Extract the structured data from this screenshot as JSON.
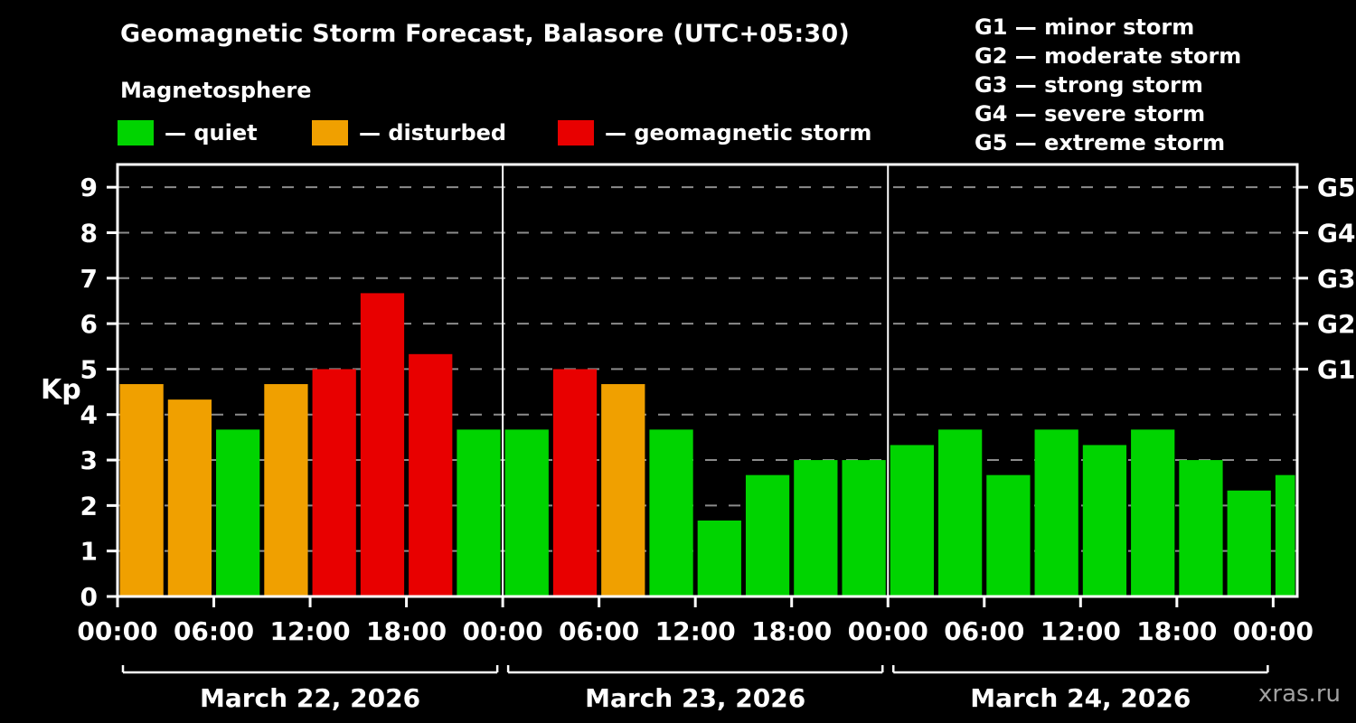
{
  "header": {
    "title": "Geomagnetic Storm Forecast, Balasore (UTC+05:30)",
    "subtitle": "Magnetosphere"
  },
  "legend": {
    "items": [
      {
        "name": "quiet",
        "label": "— quiet"
      },
      {
        "name": "disturbed",
        "label": "— disturbed"
      },
      {
        "name": "storm",
        "label": "— geomagnetic storm"
      }
    ]
  },
  "g_scale": {
    "items": [
      "G1 — minor storm",
      "G2 — moderate storm",
      "G3 — strong storm",
      "G4 — severe storm",
      "G5 — extreme storm"
    ]
  },
  "colors": {
    "quiet": "#00D400",
    "disturbed": "#F0A000",
    "storm": "#E80000",
    "background": "#000000",
    "axis": "#FFFFFF",
    "grid": "#8C8C8C",
    "watermark": "#A0A0A0"
  },
  "footer": {
    "watermark": "xras.ru"
  },
  "chart_data": {
    "type": "bar",
    "title": "Geomagnetic Storm Forecast, Balasore (UTC+05:30)",
    "xlabel": "",
    "ylabel": "Kp",
    "ylim": [
      0,
      9.5
    ],
    "grid": "dashed",
    "legend_position": "top",
    "y_ticks": [
      0,
      1,
      2,
      3,
      4,
      5,
      6,
      7,
      8,
      9
    ],
    "right_ticks": [
      {
        "kp": 5,
        "label": "G1"
      },
      {
        "kp": 6,
        "label": "G2"
      },
      {
        "kp": 7,
        "label": "G3"
      },
      {
        "kp": 8,
        "label": "G4"
      },
      {
        "kp": 9,
        "label": "G5"
      }
    ],
    "x_ticks": [
      {
        "hour": 0,
        "label": "00:00"
      },
      {
        "hour": 6,
        "label": "06:00"
      },
      {
        "hour": 12,
        "label": "12:00"
      },
      {
        "hour": 18,
        "label": "18:00"
      },
      {
        "hour": 24,
        "label": "00:00"
      },
      {
        "hour": 30,
        "label": "06:00"
      },
      {
        "hour": 36,
        "label": "12:00"
      },
      {
        "hour": 42,
        "label": "18:00"
      },
      {
        "hour": 48,
        "label": "00:00"
      },
      {
        "hour": 54,
        "label": "06:00"
      },
      {
        "hour": 60,
        "label": "12:00"
      },
      {
        "hour": 66,
        "label": "18:00"
      },
      {
        "hour": 72,
        "label": "00:00"
      }
    ],
    "day_separator_hours": [
      24,
      48
    ],
    "days": [
      {
        "label": "March 22, 2026",
        "start_hour": 0,
        "end_hour": 24
      },
      {
        "label": "March 23, 2026",
        "start_hour": 24,
        "end_hour": 48
      },
      {
        "label": "March 24, 2026",
        "start_hour": 48,
        "end_hour": 72
      }
    ],
    "bars": [
      {
        "start_hour": 0,
        "duration_hours": 3,
        "kp": 4.67,
        "status": "disturbed"
      },
      {
        "start_hour": 3,
        "duration_hours": 3,
        "kp": 4.33,
        "status": "disturbed"
      },
      {
        "start_hour": 6,
        "duration_hours": 3,
        "kp": 3.67,
        "status": "quiet"
      },
      {
        "start_hour": 9,
        "duration_hours": 3,
        "kp": 4.67,
        "status": "disturbed"
      },
      {
        "start_hour": 12,
        "duration_hours": 3,
        "kp": 5.0,
        "status": "storm"
      },
      {
        "start_hour": 15,
        "duration_hours": 3,
        "kp": 6.67,
        "status": "storm"
      },
      {
        "start_hour": 18,
        "duration_hours": 3,
        "kp": 5.33,
        "status": "storm"
      },
      {
        "start_hour": 21,
        "duration_hours": 3,
        "kp": 3.67,
        "status": "quiet"
      },
      {
        "start_hour": 24,
        "duration_hours": 3,
        "kp": 3.67,
        "status": "quiet"
      },
      {
        "start_hour": 27,
        "duration_hours": 3,
        "kp": 5.0,
        "status": "storm"
      },
      {
        "start_hour": 30,
        "duration_hours": 3,
        "kp": 4.67,
        "status": "disturbed"
      },
      {
        "start_hour": 33,
        "duration_hours": 3,
        "kp": 3.67,
        "status": "quiet"
      },
      {
        "start_hour": 36,
        "duration_hours": 3,
        "kp": 1.67,
        "status": "quiet"
      },
      {
        "start_hour": 39,
        "duration_hours": 3,
        "kp": 2.67,
        "status": "quiet"
      },
      {
        "start_hour": 42,
        "duration_hours": 3,
        "kp": 3.0,
        "status": "quiet"
      },
      {
        "start_hour": 45,
        "duration_hours": 3,
        "kp": 3.0,
        "status": "quiet"
      },
      {
        "start_hour": 48,
        "duration_hours": 3,
        "kp": 3.33,
        "status": "quiet"
      },
      {
        "start_hour": 51,
        "duration_hours": 3,
        "kp": 3.67,
        "status": "quiet"
      },
      {
        "start_hour": 54,
        "duration_hours": 3,
        "kp": 2.67,
        "status": "quiet"
      },
      {
        "start_hour": 57,
        "duration_hours": 3,
        "kp": 3.67,
        "status": "quiet"
      },
      {
        "start_hour": 60,
        "duration_hours": 3,
        "kp": 3.33,
        "status": "quiet"
      },
      {
        "start_hour": 63,
        "duration_hours": 3,
        "kp": 3.67,
        "status": "quiet"
      },
      {
        "start_hour": 66,
        "duration_hours": 3,
        "kp": 3.0,
        "status": "quiet"
      },
      {
        "start_hour": 69,
        "duration_hours": 3,
        "kp": 2.33,
        "status": "quiet"
      },
      {
        "start_hour": 72,
        "duration_hours": 1.5,
        "kp": 2.67,
        "status": "quiet"
      }
    ]
  }
}
